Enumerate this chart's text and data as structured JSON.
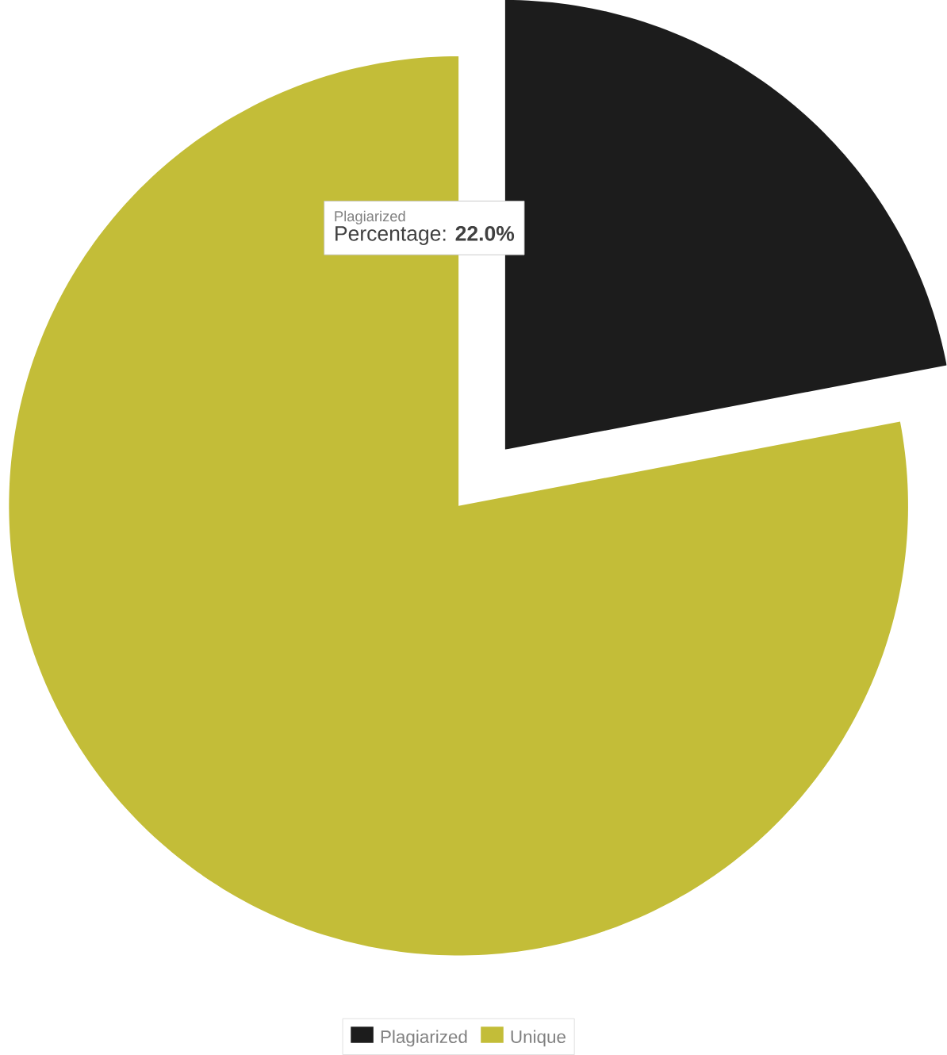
{
  "chart_data": {
    "type": "pie",
    "categories": [
      "Plagiarized",
      "Unique"
    ],
    "values": [
      22,
      78
    ],
    "colors": [
      "#1c1c1c",
      "#c3bd38"
    ],
    "legend": "bottom",
    "annotations": [
      "Plagiarized",
      "Percentage: **22.0%**"
    ]
  }
}
